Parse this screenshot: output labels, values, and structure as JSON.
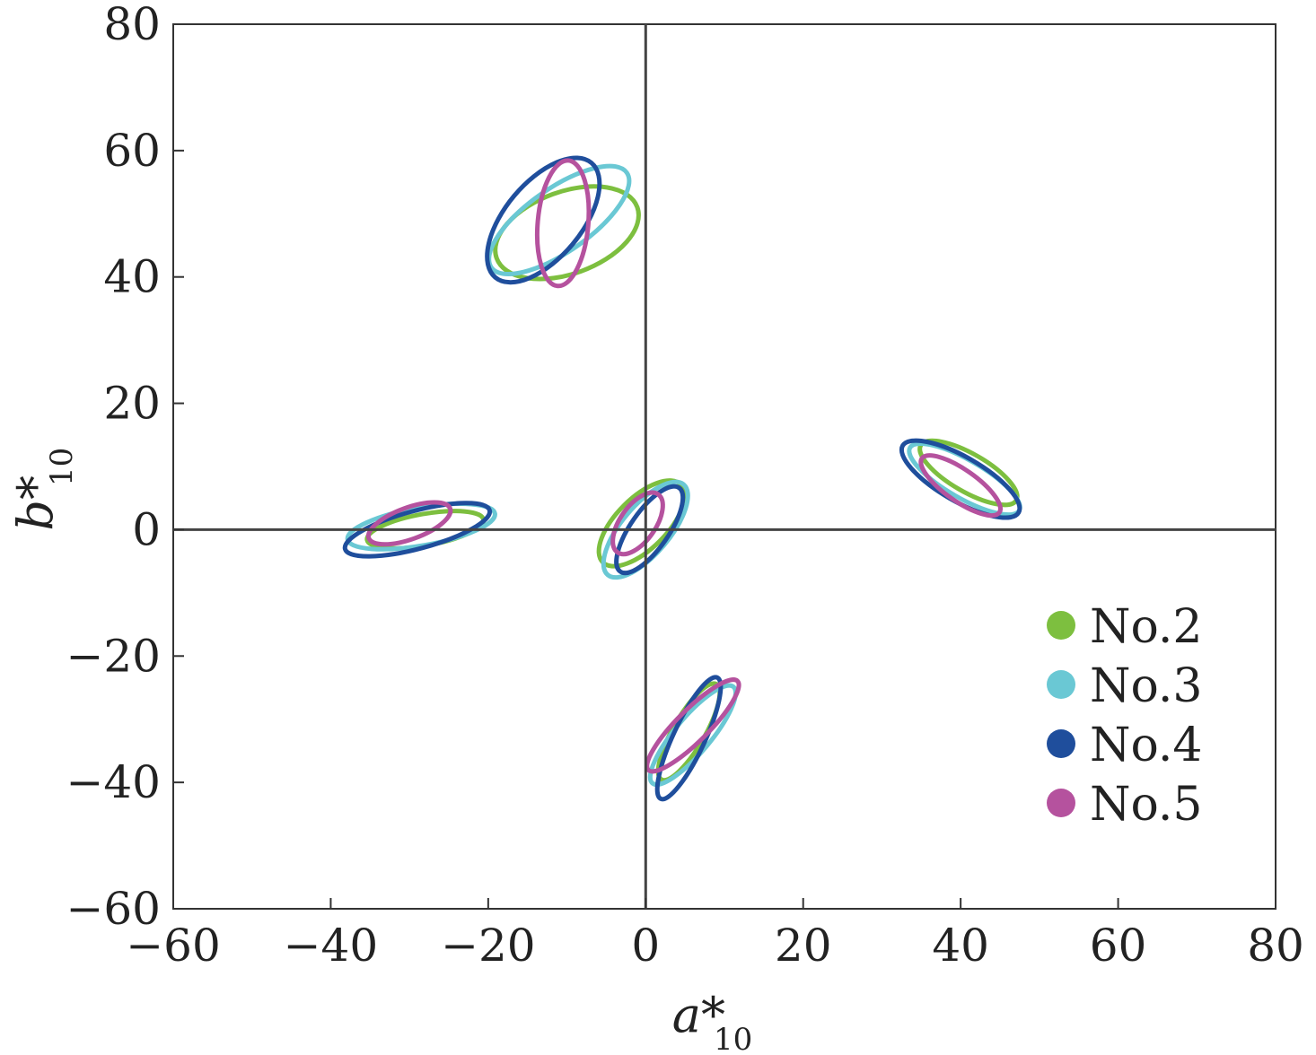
{
  "chart_data": {
    "type": "scatter",
    "xlabel": "a*",
    "xlabel_sub": "10",
    "ylabel": "b*",
    "ylabel_sub": "10",
    "xlim": [
      -60,
      80
    ],
    "ylim": [
      -60,
      80
    ],
    "xticks": [
      -60,
      -40,
      -20,
      0,
      20,
      40,
      60,
      80
    ],
    "yticks": [
      -60,
      -40,
      -20,
      0,
      20,
      40,
      60,
      80
    ],
    "xtick_labels": [
      "−60",
      "−40",
      "−20",
      "0",
      "20",
      "40",
      "60",
      "80"
    ],
    "ytick_labels": [
      "−60",
      "−40",
      "−20",
      "0",
      "20",
      "40",
      "60",
      "80"
    ],
    "grid": false,
    "legend_position": "bottom-right",
    "series": [
      {
        "name": "No.2",
        "color": "#7dbf3f",
        "ellipses": [
          {
            "cx": -10,
            "cy": 47,
            "rx": 9.5,
            "ry": 6.5,
            "angle": -20
          },
          {
            "cx": -28,
            "cy": 0,
            "rx": 7.5,
            "ry": 2.5,
            "angle": -10
          },
          {
            "cx": -0.5,
            "cy": 1,
            "rx": 7,
            "ry": 4,
            "angle": -45
          },
          {
            "cx": 41,
            "cy": 9,
            "rx": 7,
            "ry": 3,
            "angle": 30
          },
          {
            "cx": 5.5,
            "cy": -32,
            "rx": 7,
            "ry": 2.5,
            "angle": -60
          }
        ]
      },
      {
        "name": "No.3",
        "color": "#6ac8d4",
        "ellipses": [
          {
            "cx": -11,
            "cy": 49,
            "rx": 10.5,
            "ry": 5,
            "angle": -35
          },
          {
            "cx": -28.5,
            "cy": 0.5,
            "rx": 9.5,
            "ry": 3,
            "angle": -10
          },
          {
            "cx": 0,
            "cy": 0,
            "rx": 7.5,
            "ry": 3.8,
            "angle": -50
          },
          {
            "cx": 40.5,
            "cy": 8,
            "rx": 8,
            "ry": 3,
            "angle": 30
          },
          {
            "cx": 6,
            "cy": -32.5,
            "rx": 8,
            "ry": 2.8,
            "angle": -50
          }
        ]
      },
      {
        "name": "No.4",
        "color": "#1f4e9c",
        "ellipses": [
          {
            "cx": -13,
            "cy": 49,
            "rx": 9.5,
            "ry": 6,
            "angle": -50
          },
          {
            "cx": -29,
            "cy": 0,
            "rx": 9.5,
            "ry": 3,
            "angle": -15
          },
          {
            "cx": 0.5,
            "cy": 0,
            "rx": 6.5,
            "ry": 3,
            "angle": -55
          },
          {
            "cx": 40,
            "cy": 8,
            "rx": 8.5,
            "ry": 3.5,
            "angle": 30
          },
          {
            "cx": 5.5,
            "cy": -33,
            "rx": 8.5,
            "ry": 2.5,
            "angle": -65
          }
        ]
      },
      {
        "name": "No.5",
        "color": "#b5529e",
        "ellipses": [
          {
            "cx": -10.5,
            "cy": 48.5,
            "rx": 8,
            "ry": 4,
            "angle": -85
          },
          {
            "cx": -30,
            "cy": 1,
            "rx": 5.5,
            "ry": 2.5,
            "angle": -20
          },
          {
            "cx": -1,
            "cy": 1,
            "rx": 4.5,
            "ry": 2.8,
            "angle": -55
          },
          {
            "cx": 40,
            "cy": 7,
            "rx": 6,
            "ry": 2.5,
            "angle": 35
          },
          {
            "cx": 6,
            "cy": -31,
            "rx": 8,
            "ry": 2.5,
            "angle": -45
          }
        ]
      }
    ]
  }
}
